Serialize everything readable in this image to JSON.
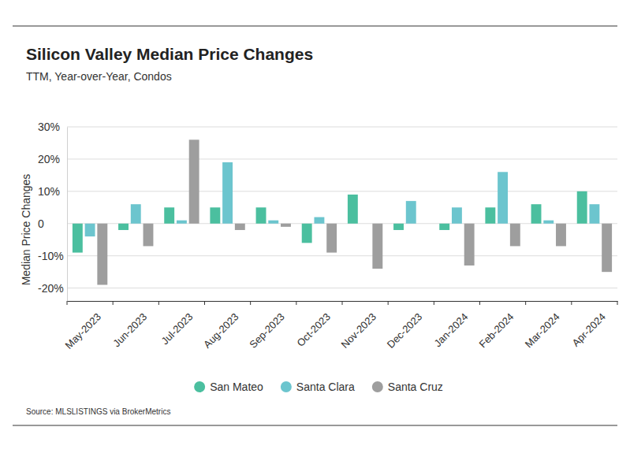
{
  "chart_data": {
    "type": "bar",
    "title": "Silicon Valley Median Price Changes",
    "subtitle": "TTM, Year-over-Year, Condos",
    "y_label": "Median Price Changes",
    "source": "Source:  MLSLISTINGS via BrokerMetrics",
    "categories": [
      "May-2023",
      "Jun-2023",
      "Jul-2023",
      "Aug-2023",
      "Sep-2023",
      "Oct-2023",
      "Nov-2023",
      "Dec-2023",
      "Jan-2024",
      "Feb-2024",
      "Mar-2024",
      "Apr-2024"
    ],
    "series": [
      {
        "name": "San Mateo",
        "color": "#4bbf9f",
        "values": [
          -9,
          -2,
          5,
          5,
          5,
          -6,
          9,
          -2,
          -2,
          5,
          6,
          10
        ]
      },
      {
        "name": "Santa Clara",
        "color": "#6cc5ce",
        "values": [
          -4,
          6,
          1,
          19,
          1,
          2,
          0,
          7,
          5,
          16,
          1,
          6
        ]
      },
      {
        "name": "Santa Cruz",
        "color": "#9e9e9e",
        "values": [
          -19,
          -7,
          26,
          -2,
          -1,
          -9,
          -14,
          0,
          -13,
          -7,
          -7,
          -15
        ]
      }
    ],
    "ylim": [
      -24,
      30
    ],
    "yticks": [
      {
        "value": -20,
        "label": "-20%"
      },
      {
        "value": -10,
        "label": "-10%"
      },
      {
        "value": 0,
        "label": "0"
      },
      {
        "value": 10,
        "label": "10%"
      },
      {
        "value": 20,
        "label": "20%"
      },
      {
        "value": 30,
        "label": "30%"
      }
    ],
    "grid": true,
    "legend": "bottom"
  }
}
